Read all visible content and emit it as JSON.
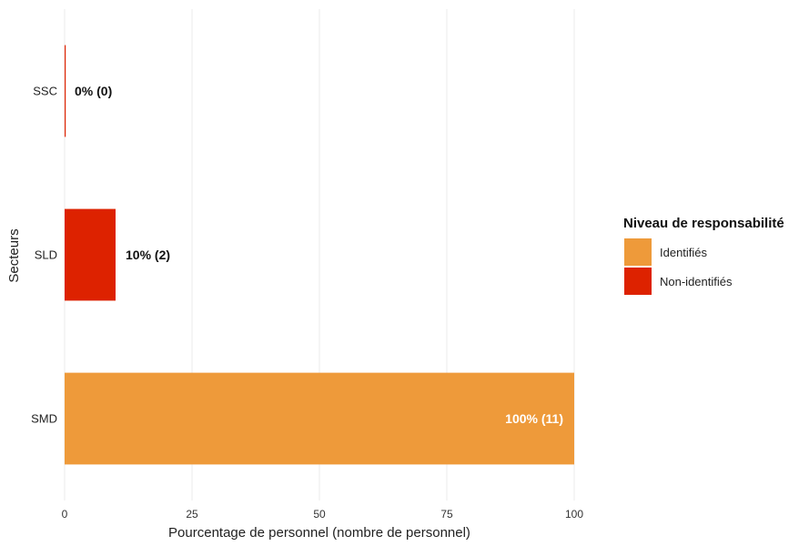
{
  "chart_data": {
    "type": "bar",
    "orientation": "horizontal",
    "categories": [
      "SSC",
      "SLD",
      "SMD"
    ],
    "values": [
      0,
      10,
      100
    ],
    "data_labels": [
      "0% (0)",
      "10% (2)",
      "100% (11)"
    ],
    "bar_level": [
      "Non-identifiés",
      "Non-identifiés",
      "Identifiés"
    ],
    "xlabel": "Pourcentage de personnel (nombre de personnel)",
    "ylabel": "Secteurs",
    "xlim": [
      0,
      100
    ],
    "x_ticks": [
      0,
      25,
      50,
      75,
      100
    ],
    "grid": true,
    "legend": {
      "title": "Niveau de responsabilité",
      "placement": "right",
      "entries": [
        {
          "label": "Identifiés",
          "color": "#EE9A3A"
        },
        {
          "label": "Non-identifiés",
          "color": "#DD2200"
        }
      ]
    },
    "colors": {
      "Identifiés": "#EE9A3A",
      "Non-identifiés": "#DD2200"
    }
  }
}
